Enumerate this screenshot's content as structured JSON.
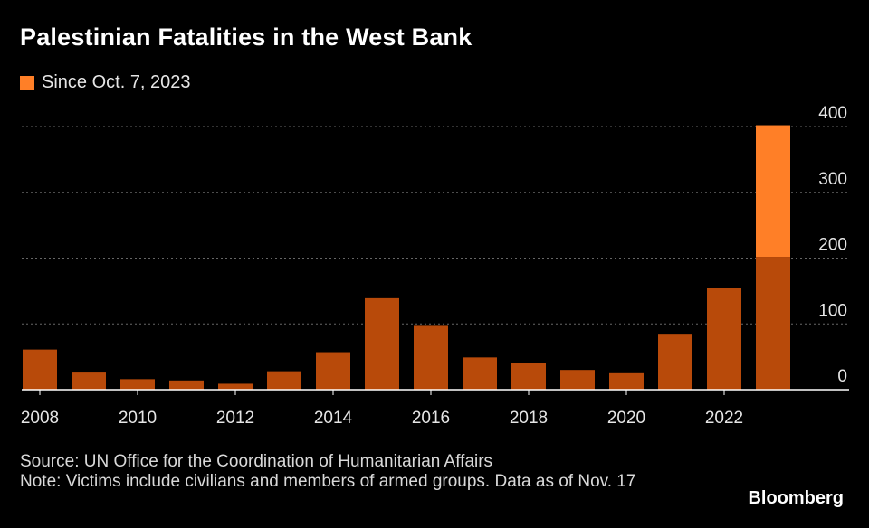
{
  "title": "Palestinian Fatalities in the West Bank",
  "legend": {
    "label": "Since Oct. 7, 2023",
    "color": "#ff7f27"
  },
  "colors": {
    "base": "#b84a0a",
    "highlight": "#ff7f27",
    "grid": "#666666",
    "axis": "#ffffff"
  },
  "source": "Source: UN Office for the Coordination of Humanitarian Affairs",
  "note": "Note: Victims include civilians and members of armed groups. Data as of Nov. 17",
  "brand": "Bloomberg",
  "chart_data": {
    "type": "bar",
    "stacked": true,
    "categories": [
      2008,
      2009,
      2010,
      2011,
      2012,
      2013,
      2014,
      2015,
      2016,
      2017,
      2018,
      2019,
      2020,
      2021,
      2022,
      2023
    ],
    "series": [
      {
        "values": [
          61,
          26,
          16,
          14,
          9,
          28,
          57,
          139,
          97,
          49,
          40,
          30,
          25,
          85,
          155,
          202
        ],
        "color": "#b84a0a"
      },
      {
        "name": "Since Oct. 7, 2023",
        "values": [
          0,
          0,
          0,
          0,
          0,
          0,
          0,
          0,
          0,
          0,
          0,
          0,
          0,
          0,
          0,
          200
        ],
        "color": "#ff7f27"
      }
    ],
    "x_tick_labels": [
      "2008",
      "2010",
      "2012",
      "2014",
      "2016",
      "2018",
      "2020",
      "2022"
    ],
    "y_ticks": [
      0,
      100,
      200,
      300,
      400
    ],
    "ylim": [
      0,
      400
    ],
    "grid": true,
    "y_axis_position": "right",
    "legend_position": "top-left"
  }
}
